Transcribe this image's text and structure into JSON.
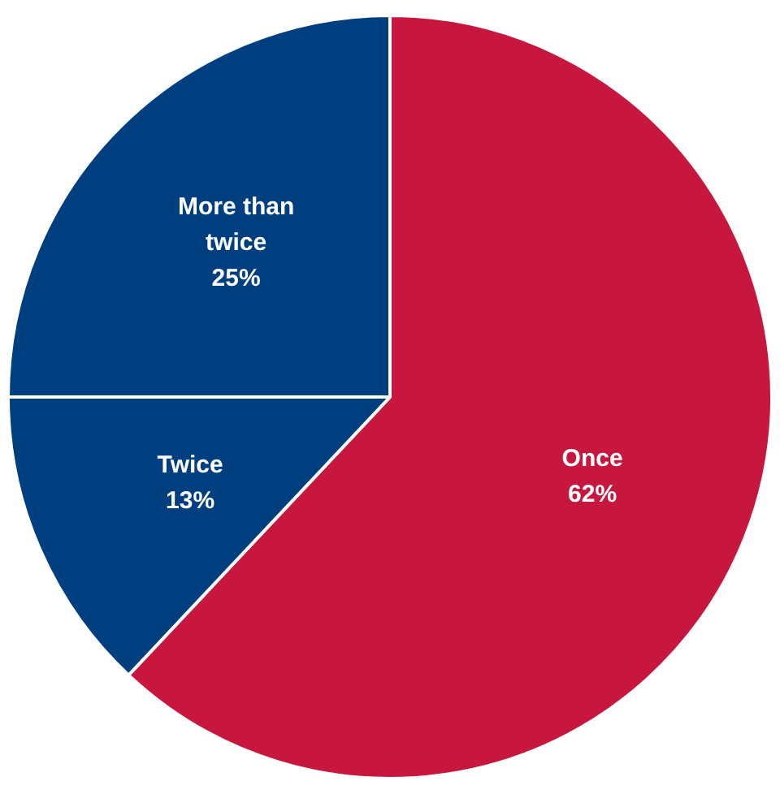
{
  "chart_data": {
    "type": "pie",
    "categories": [
      "Once",
      "Twice",
      "More than twice"
    ],
    "values": [
      62,
      13,
      25
    ],
    "value_labels": [
      "62%",
      "13%",
      "25%"
    ],
    "colors": [
      "#c8173f",
      "#003f7f",
      "#003f7f"
    ],
    "legend": false
  }
}
